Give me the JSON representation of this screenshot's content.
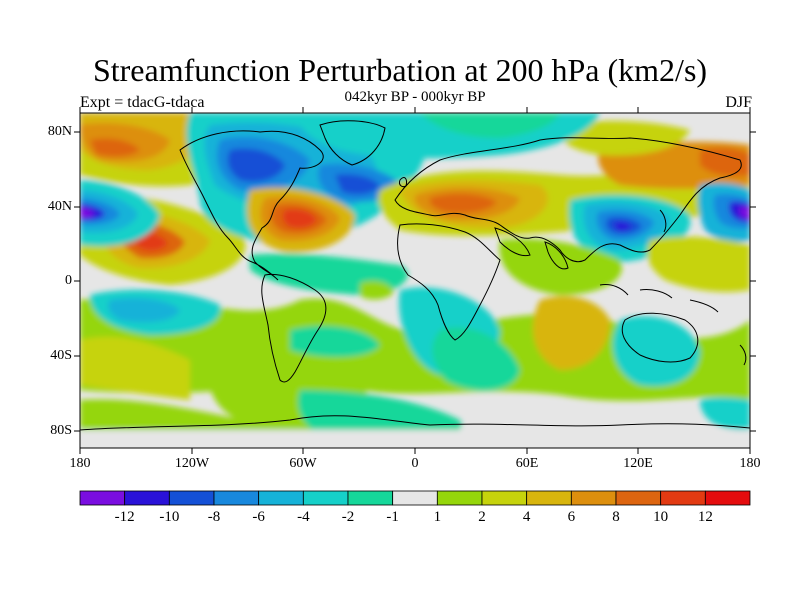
{
  "title": "Streamfunction Perturbation at 200 hPa (km2/s)",
  "subtitle": "042kyr BP - 000kyr BP",
  "left_label": "Expt = tdacG-tdaca",
  "right_label": "DJF",
  "lat_ticks": [
    "80N",
    "40N",
    "0",
    "40S",
    "80S"
  ],
  "lon_ticks": [
    "180",
    "120W",
    "60W",
    "0",
    "60E",
    "120E",
    "180"
  ],
  "colorbar": {
    "colors": [
      "#7a0ee0",
      "#2a12d8",
      "#1450d6",
      "#1888dd",
      "#16b2d8",
      "#16d0c9",
      "#16d79a",
      "#e6e6e6",
      "#95d60a",
      "#c6d30c",
      "#d8b50e",
      "#dd8f0e",
      "#dd6510",
      "#e23a12",
      "#e40c0e"
    ],
    "labels": [
      "-12",
      "-10",
      "-8",
      "-6",
      "-4",
      "-2",
      "-1",
      "1",
      "2",
      "4",
      "6",
      "8",
      "10",
      "12"
    ]
  }
}
